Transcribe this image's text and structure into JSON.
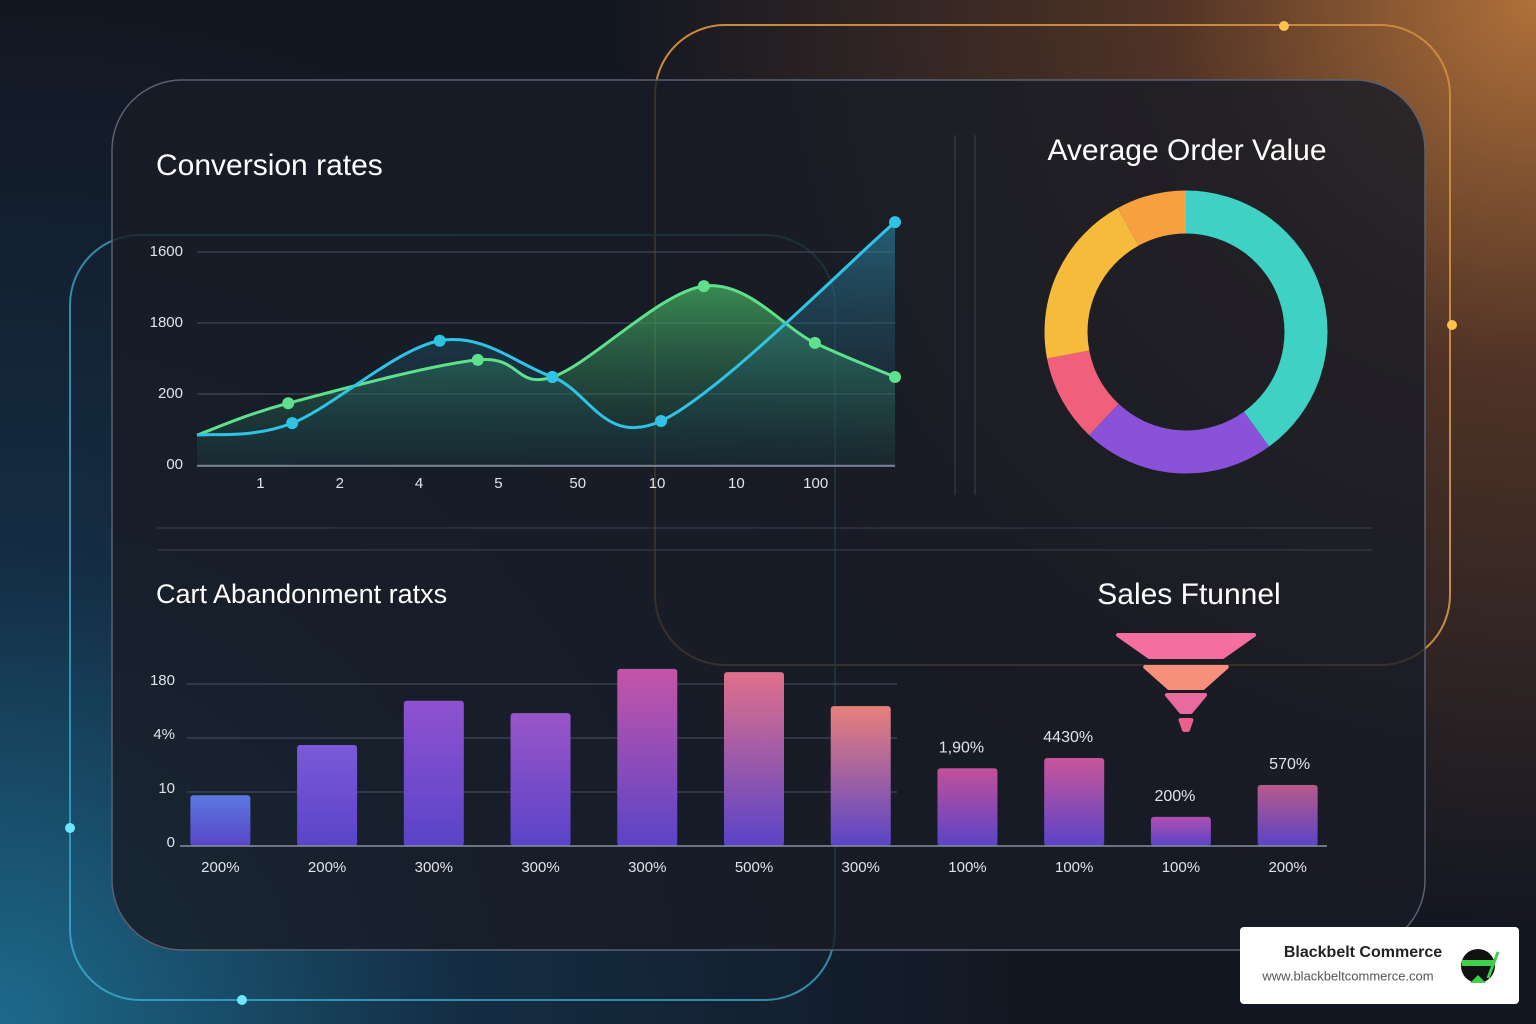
{
  "chart_data": [
    {
      "type": "line",
      "title": "Conversion rates",
      "xlim": [
        0.2,
        9
      ],
      "xticks": [
        1,
        2,
        {
          "value": 3,
          "label": "4"
        },
        {
          "value": 4,
          "label": "5"
        },
        {
          "value": 5,
          "label": "50"
        },
        {
          "value": 6,
          "label": "10"
        },
        {
          "value": 7,
          "label": "10"
        },
        {
          "value": 8,
          "label": "100"
        }
      ],
      "ylim": [
        0,
        3.5
      ],
      "yticks": [
        {
          "value": 0,
          "label": "00"
        },
        {
          "value": 1,
          "label": "200"
        },
        {
          "value": 2,
          "label": "1800"
        },
        {
          "value": 3,
          "label": "1600"
        }
      ],
      "grid": true,
      "series": [
        {
          "color": "#5ee08c",
          "x": [
            0.2,
            1.35,
            3.74,
            4.68,
            6.59,
            7.99,
            9
          ],
          "values": [
            0.42,
            0.87,
            1.48,
            1.24,
            2.52,
            1.72,
            1.24
          ]
        },
        {
          "color": "#2fc4e6",
          "x": [
            0.2,
            1.4,
            3.26,
            4.68,
            6.05,
            9
          ],
          "values": [
            0.42,
            0.59,
            1.75,
            1.24,
            0.62,
            3.42
          ]
        }
      ]
    },
    {
      "type": "donut",
      "title": "Average Order Value",
      "values": [
        40,
        22,
        10,
        20,
        8
      ],
      "colors": [
        "#3fd2c4",
        "#8a52d8",
        "#f0607a",
        "#f7bb3c",
        "#f7a040"
      ]
    },
    {
      "type": "bar",
      "title": "Cart Abandonment ratxs",
      "categories": [
        "200%",
        "200%",
        "300%",
        "300%",
        "300%",
        "500%",
        "300%",
        "100%",
        "100%",
        "100%",
        "200%"
      ],
      "values": [
        0.94,
        1.87,
        2.69,
        2.46,
        3.28,
        3.22,
        2.59,
        1.44,
        1.63,
        0.54,
        1.13
      ],
      "colors": [
        "#5a7ae0",
        "#7a5ad8",
        "#8f52d0",
        "#9a55c8",
        "#c455a8",
        "#e0708a",
        "#e8807a",
        "#c2509a",
        "#c9559a",
        "#b04fb0",
        "#b85a8a"
      ],
      "base_color": "#5a44c8",
      "ylim": [
        0,
        3.3
      ],
      "yticks": [
        0,
        {
          "value": 1,
          "label": "10"
        },
        {
          "value": 2,
          "label": "4%"
        },
        {
          "value": 3,
          "label": "180"
        }
      ],
      "grid": true,
      "annotations": [
        "1,90%",
        "4430%",
        "200%",
        "570%"
      ]
    },
    {
      "type": "funnel",
      "title": "Sales Ftunnel",
      "values": [
        100,
        60,
        28,
        8
      ],
      "colors": [
        "#f56ea0",
        "#f7907a",
        "#e86aa0",
        "#e8608a"
      ]
    }
  ],
  "brand": {
    "name": "Blackbelt Commerce",
    "url": "www.blackbeltcommerce.com"
  }
}
